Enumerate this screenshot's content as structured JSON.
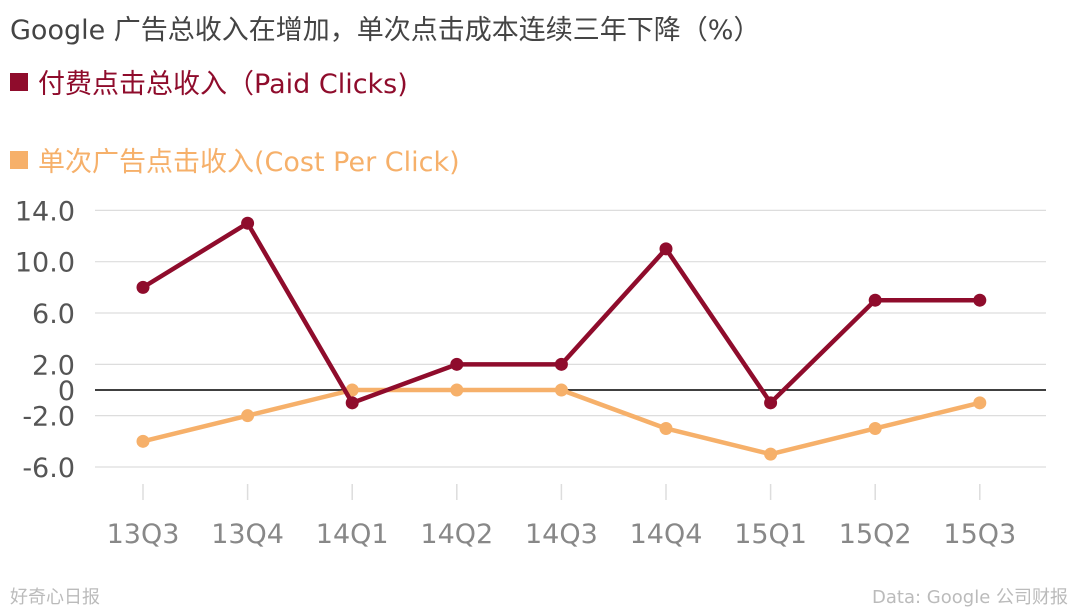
{
  "title": "Google 广告总收入在增加，单次点击成本连续三年下降（%）",
  "footer": {
    "left": "好奇心日报",
    "right": "Data: Google 公司财报"
  },
  "chart_data": {
    "type": "line",
    "categories": [
      "13Q3",
      "13Q4",
      "14Q1",
      "14Q2",
      "14Q3",
      "14Q4",
      "15Q1",
      "15Q2",
      "15Q3"
    ],
    "series": [
      {
        "name": "付费点击总收入（Paid Clicks)",
        "color": "#8f0c2c",
        "values": [
          8,
          13,
          -1,
          2,
          2,
          11,
          -1,
          7,
          7
        ]
      },
      {
        "name": "单次广告点击收入(Cost Per Click)",
        "color": "#f6b06a",
        "values": [
          -4,
          -2,
          0,
          0,
          0,
          -3,
          -5,
          -3,
          -1
        ]
      }
    ],
    "y_ticks": [
      "14.0",
      "10.0",
      "6.0",
      "2.0",
      "0",
      "-2.0",
      "-6.0"
    ],
    "ylim": [
      -6,
      14
    ],
    "grid": true,
    "legend_position": "top-left"
  }
}
